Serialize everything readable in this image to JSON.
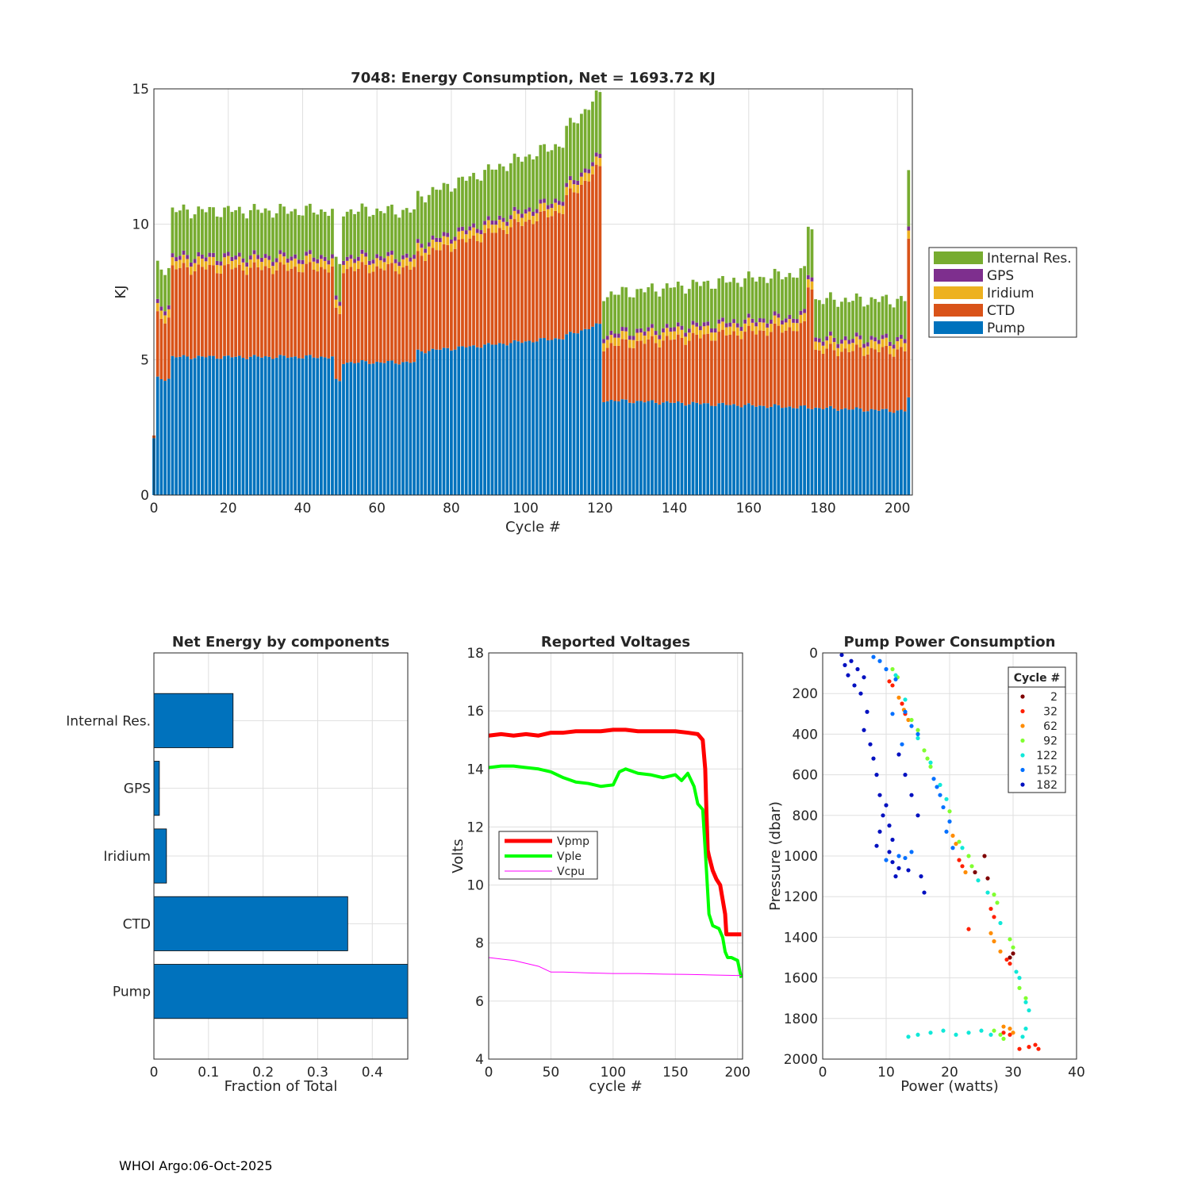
{
  "footer": "WHOI Argo:06-Oct-2025",
  "colors": {
    "pump": "#0072bd",
    "ctd": "#d95319",
    "iridium": "#edb120",
    "gps": "#7e2f8e",
    "internal": "#77ac30",
    "vpmp": "#ff0000",
    "vple": "#00ff00",
    "vcpu": "#ff00ff"
  },
  "chart_data": [
    {
      "type": "bar",
      "stacked": true,
      "title": "7048: Energy Consumption,  Net = 1693.72 KJ",
      "xlabel": "Cycle #",
      "ylabel": "KJ",
      "xlim": [
        0,
        204
      ],
      "ylim": [
        0,
        15
      ],
      "xticks": [
        0,
        20,
        40,
        60,
        80,
        100,
        120,
        140,
        160,
        180,
        200
      ],
      "yticks": [
        0,
        5,
        10,
        15
      ],
      "legend": [
        "Internal Res.",
        "GPS",
        "Iridium",
        "CTD",
        "Pump"
      ],
      "legend_position": "outside-right",
      "series_approx": {
        "total_by_segment": [
          {
            "cycles": [
              0,
              0
            ],
            "total": 2.2
          },
          {
            "cycles": [
              1,
              4
            ],
            "total": 8.4
          },
          {
            "cycles": [
              5,
              48
            ],
            "total": 10.5
          },
          {
            "cycles": [
              49,
              50
            ],
            "total": 8.5
          },
          {
            "cycles": [
              51,
              70
            ],
            "total": 10.5
          },
          {
            "cycles": [
              71,
              110
            ],
            "total": 11.0,
            "end_total": 13.0
          },
          {
            "cycles": [
              111,
              120
            ],
            "total": 13.5,
            "end_total": 14.8
          },
          {
            "cycles": [
              121,
              175
            ],
            "total": 7.4,
            "end_total": 8.2
          },
          {
            "cycles": [
              176,
              177
            ],
            "total": 10.0
          },
          {
            "cycles": [
              178,
              202
            ],
            "total": 7.2
          },
          {
            "cycles": [
              203,
              203
            ],
            "total": 12.0
          }
        ],
        "pump_by_segment": [
          {
            "cycles": [
              0,
              0
            ],
            "value": 2.1
          },
          {
            "cycles": [
              1,
              4
            ],
            "value": 4.3
          },
          {
            "cycles": [
              5,
              48
            ],
            "value": 5.1
          },
          {
            "cycles": [
              49,
              50
            ],
            "value": 4.2
          },
          {
            "cycles": [
              51,
              70
            ],
            "value": 4.9
          },
          {
            "cycles": [
              71,
              110
            ],
            "value": 5.3,
            "end_value": 5.8
          },
          {
            "cycles": [
              111,
              120
            ],
            "value": 5.9,
            "end_value": 6.3
          },
          {
            "cycles": [
              121,
              202
            ],
            "value": 3.5,
            "end_value": 3.1
          },
          {
            "cycles": [
              203,
              203
            ],
            "value": 3.6
          }
        ]
      }
    },
    {
      "type": "barh",
      "title": "Net Energy by components",
      "xlabel": "Fraction of Total",
      "categories": [
        "Internal Res.",
        "GPS",
        "Iridium",
        "CTD",
        "Pump"
      ],
      "values": [
        0.145,
        0.01,
        0.023,
        0.355,
        0.465
      ],
      "xlim": [
        0,
        0.465
      ],
      "xticks": [
        "0",
        "0.1",
        "0.2",
        "0.3",
        "0.4"
      ]
    },
    {
      "type": "line",
      "title": "Reported Voltages",
      "xlabel": "cycle #",
      "ylabel": "Volts",
      "xlim": [
        0,
        204
      ],
      "ylim": [
        4,
        18
      ],
      "xticks": [
        0,
        50,
        100,
        150,
        200
      ],
      "yticks": [
        4,
        6,
        8,
        10,
        12,
        14,
        16,
        18
      ],
      "legend_position": "west",
      "series": [
        {
          "name": "Vpmp",
          "x": [
            0,
            10,
            20,
            30,
            40,
            50,
            60,
            70,
            80,
            90,
            100,
            110,
            120,
            130,
            140,
            150,
            160,
            168,
            172,
            174,
            175,
            176,
            177,
            180,
            183,
            186,
            188,
            190,
            191,
            192,
            200,
            203
          ],
          "y": [
            15.15,
            15.2,
            15.15,
            15.2,
            15.15,
            15.25,
            15.25,
            15.3,
            15.3,
            15.3,
            15.35,
            15.35,
            15.3,
            15.3,
            15.3,
            15.3,
            15.25,
            15.2,
            15.0,
            14.0,
            12.5,
            11.2,
            11.0,
            10.5,
            10.2,
            10.0,
            9.5,
            9.0,
            8.3,
            8.3,
            8.3,
            8.3
          ]
        },
        {
          "name": "Vple",
          "x": [
            0,
            10,
            20,
            30,
            40,
            50,
            60,
            70,
            80,
            90,
            100,
            105,
            110,
            120,
            130,
            140,
            150,
            155,
            160,
            165,
            168,
            172,
            175,
            177,
            180,
            185,
            188,
            190,
            192,
            195,
            200,
            203
          ],
          "y": [
            14.05,
            14.1,
            14.1,
            14.05,
            14.0,
            13.9,
            13.7,
            13.55,
            13.5,
            13.4,
            13.45,
            13.9,
            14.0,
            13.85,
            13.8,
            13.7,
            13.8,
            13.6,
            13.85,
            13.4,
            12.8,
            12.6,
            10.5,
            9.0,
            8.6,
            8.5,
            8.2,
            7.7,
            7.5,
            7.5,
            7.4,
            6.8
          ]
        },
        {
          "name": "Vcpu",
          "x": [
            0,
            20,
            40,
            50,
            60,
            80,
            100,
            120,
            140,
            160,
            180,
            200,
            203
          ],
          "y": [
            7.5,
            7.4,
            7.2,
            7.0,
            7.0,
            6.97,
            6.95,
            6.95,
            6.93,
            6.92,
            6.9,
            6.88,
            6.88
          ]
        }
      ]
    },
    {
      "type": "scatter",
      "title": "Pump Power Consumption",
      "xlabel": "Power (watts)",
      "ylabel": "Pressure (dbar)",
      "xlim": [
        0,
        40
      ],
      "ylim": [
        0,
        2000
      ],
      "y_reversed": true,
      "xticks": [
        0,
        10,
        20,
        30,
        40
      ],
      "yticks": [
        0,
        200,
        400,
        600,
        800,
        1000,
        1200,
        1400,
        1600,
        1800,
        2000
      ],
      "legend_title": "Cycle #",
      "legend_position": "north-east",
      "series": [
        {
          "name": "2",
          "color": "#7f0000",
          "points": [
            [
              25.5,
              1000
            ],
            [
              24.0,
              1080
            ],
            [
              26.0,
              1110
            ],
            [
              30.0,
              1480
            ],
            [
              29.5,
              1500
            ]
          ]
        },
        {
          "name": "32",
          "color": "#ff2000",
          "points": [
            [
              10.5,
              140
            ],
            [
              11.0,
              160
            ],
            [
              12.5,
              250
            ],
            [
              13.0,
              300
            ],
            [
              21.5,
              1020
            ],
            [
              22.0,
              1050
            ],
            [
              26.5,
              1260
            ],
            [
              27.0,
              1300
            ],
            [
              23.0,
              1360
            ],
            [
              29.0,
              1510
            ],
            [
              29.5,
              1530
            ],
            [
              28.5,
              1870
            ],
            [
              29.5,
              1880
            ],
            [
              31.0,
              1950
            ],
            [
              32.5,
              1940
            ],
            [
              33.5,
              1930
            ],
            [
              34.0,
              1950
            ]
          ]
        },
        {
          "name": "62",
          "color": "#ff8c00",
          "points": [
            [
              12.0,
              220
            ],
            [
              12.8,
              280
            ],
            [
              13.5,
              330
            ],
            [
              20.5,
              900
            ],
            [
              21.0,
              940
            ],
            [
              22.5,
              1080
            ],
            [
              26.5,
              1380
            ],
            [
              27.0,
              1420
            ],
            [
              28.0,
              1470
            ],
            [
              29.5,
              1850
            ],
            [
              30.0,
              1870
            ],
            [
              28.5,
              1840
            ]
          ]
        },
        {
          "name": "92",
          "color": "#80ff30",
          "points": [
            [
              11.0,
              80
            ],
            [
              11.8,
              120
            ],
            [
              14.0,
              330
            ],
            [
              15.0,
              380
            ],
            [
              16.0,
              480
            ],
            [
              16.5,
              520
            ],
            [
              17.0,
              560
            ],
            [
              20.0,
              780
            ],
            [
              21.5,
              930
            ],
            [
              23.0,
              1000
            ],
            [
              23.5,
              1050
            ],
            [
              27.0,
              1190
            ],
            [
              27.5,
              1230
            ],
            [
              29.5,
              1410
            ],
            [
              30.0,
              1450
            ],
            [
              31.0,
              1650
            ],
            [
              32.0,
              1700
            ],
            [
              27.0,
              1860
            ],
            [
              28.0,
              1880
            ],
            [
              28.5,
              1900
            ]
          ]
        },
        {
          "name": "122",
          "color": "#10e8d8",
          "points": [
            [
              11.5,
              110
            ],
            [
              13.0,
              230
            ],
            [
              15.0,
              420
            ],
            [
              17.0,
              540
            ],
            [
              18.5,
              650
            ],
            [
              19.5,
              720
            ],
            [
              22.0,
              960
            ],
            [
              24.5,
              1120
            ],
            [
              26.0,
              1180
            ],
            [
              28.0,
              1330
            ],
            [
              30.5,
              1570
            ],
            [
              31.0,
              1600
            ],
            [
              32.0,
              1720
            ],
            [
              32.5,
              1760
            ],
            [
              32.0,
              1850
            ],
            [
              31.5,
              1890
            ],
            [
              13.5,
              1890
            ],
            [
              15.0,
              1880
            ],
            [
              17.0,
              1870
            ],
            [
              19.0,
              1860
            ],
            [
              21.0,
              1880
            ],
            [
              23.0,
              1870
            ],
            [
              25.0,
              1860
            ],
            [
              26.5,
              1880
            ]
          ]
        },
        {
          "name": "152",
          "color": "#0070ff",
          "points": [
            [
              8.0,
              20
            ],
            [
              9.0,
              40
            ],
            [
              10.0,
              80
            ],
            [
              11.5,
              130
            ],
            [
              13.0,
              290
            ],
            [
              14.0,
              360
            ],
            [
              15.0,
              400
            ],
            [
              17.5,
              620
            ],
            [
              18.0,
              660
            ],
            [
              18.5,
              700
            ],
            [
              19.0,
              760
            ],
            [
              20.0,
              830
            ],
            [
              19.5,
              880
            ],
            [
              20.5,
              960
            ],
            [
              12.0,
              1000
            ],
            [
              13.0,
              1010
            ],
            [
              10.0,
              1020
            ],
            [
              14.0,
              980
            ],
            [
              12.5,
              450
            ],
            [
              11.0,
              300
            ]
          ]
        },
        {
          "name": "182",
          "color": "#0010c0",
          "points": [
            [
              3.0,
              10
            ],
            [
              3.5,
              60
            ],
            [
              4.0,
              110
            ],
            [
              5.0,
              160
            ],
            [
              6.0,
              200
            ],
            [
              7.0,
              290
            ],
            [
              6.5,
              380
            ],
            [
              7.5,
              450
            ],
            [
              8.0,
              520
            ],
            [
              8.5,
              600
            ],
            [
              9.0,
              700
            ],
            [
              9.5,
              800
            ],
            [
              9.0,
              880
            ],
            [
              8.5,
              950
            ],
            [
              10.5,
              980
            ],
            [
              11.0,
              1030
            ],
            [
              12.0,
              1060
            ],
            [
              11.5,
              1100
            ],
            [
              13.5,
              1070
            ],
            [
              15.5,
              1100
            ],
            [
              16.0,
              1180
            ],
            [
              10.0,
              750
            ],
            [
              10.5,
              850
            ],
            [
              11.0,
              920
            ],
            [
              13.0,
              600
            ],
            [
              14.0,
              700
            ],
            [
              15.0,
              800
            ],
            [
              12.0,
              500
            ],
            [
              4.5,
              40
            ],
            [
              5.5,
              80
            ],
            [
              6.5,
              120
            ]
          ]
        }
      ]
    }
  ]
}
